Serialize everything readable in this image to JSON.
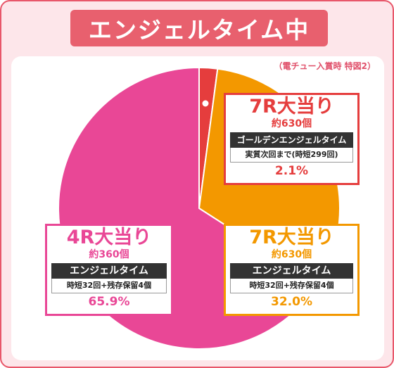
{
  "title": "エンジェルタイム中",
  "note": "（電チュー入賞時 特図2）",
  "chart_data": {
    "type": "pie",
    "slices": [
      {
        "title": "7R大当り",
        "prize": "約630個",
        "mode": "ゴールデンエンジェルタイム",
        "condition": "実質次回まで(時短299回)",
        "percent_label": "2.1%",
        "value": 2.1,
        "color": "#e53d3d"
      },
      {
        "title": "7R大当り",
        "prize": "約630個",
        "mode": "エンジェルタイム",
        "condition": "時短32回+残存保留4個",
        "percent_label": "32.0%",
        "value": 32.0,
        "color": "#f39800"
      },
      {
        "title": "4R大当り",
        "prize": "約360個",
        "mode": "エンジェルタイム",
        "condition": "時短32回+残存保留4個",
        "percent_label": "65.9%",
        "value": 65.9,
        "color": "#e94796"
      }
    ]
  }
}
